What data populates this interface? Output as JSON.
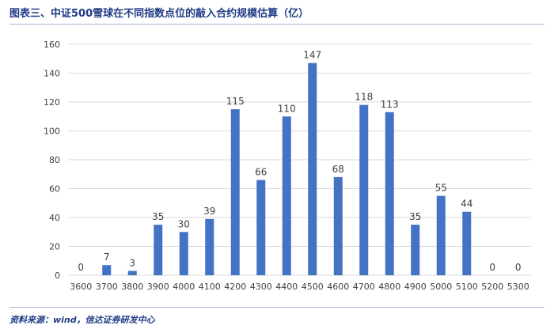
{
  "header": {
    "title": "图表三、中证500雪球在不同指数点位的敲入合约规模估算（亿）"
  },
  "footer": {
    "source": "资料来源：wind，信达证券研发中心"
  },
  "chart_data": {
    "type": "bar",
    "categories": [
      "3600",
      "3700",
      "3800",
      "3900",
      "4000",
      "4100",
      "4200",
      "4300",
      "4400",
      "4500",
      "4600",
      "4700",
      "4800",
      "4900",
      "5000",
      "5100",
      "5200",
      "5300"
    ],
    "values": [
      0,
      7,
      3,
      35,
      30,
      39,
      115,
      66,
      110,
      147,
      68,
      118,
      113,
      35,
      55,
      44,
      0,
      0
    ],
    "title": "图表三、中证500雪球在不同指数点位的敲入合约规模估算（亿）",
    "xlabel": "",
    "ylabel": "",
    "ylim": [
      0,
      160
    ],
    "yticks": [
      0,
      20,
      40,
      60,
      80,
      100,
      120,
      140,
      160
    ],
    "grid": true,
    "data_labels": true,
    "bar_color": "#4472c4",
    "grid_color": "#d9d9d9",
    "text_color": "#404040",
    "title_color": "#1f3b86"
  }
}
